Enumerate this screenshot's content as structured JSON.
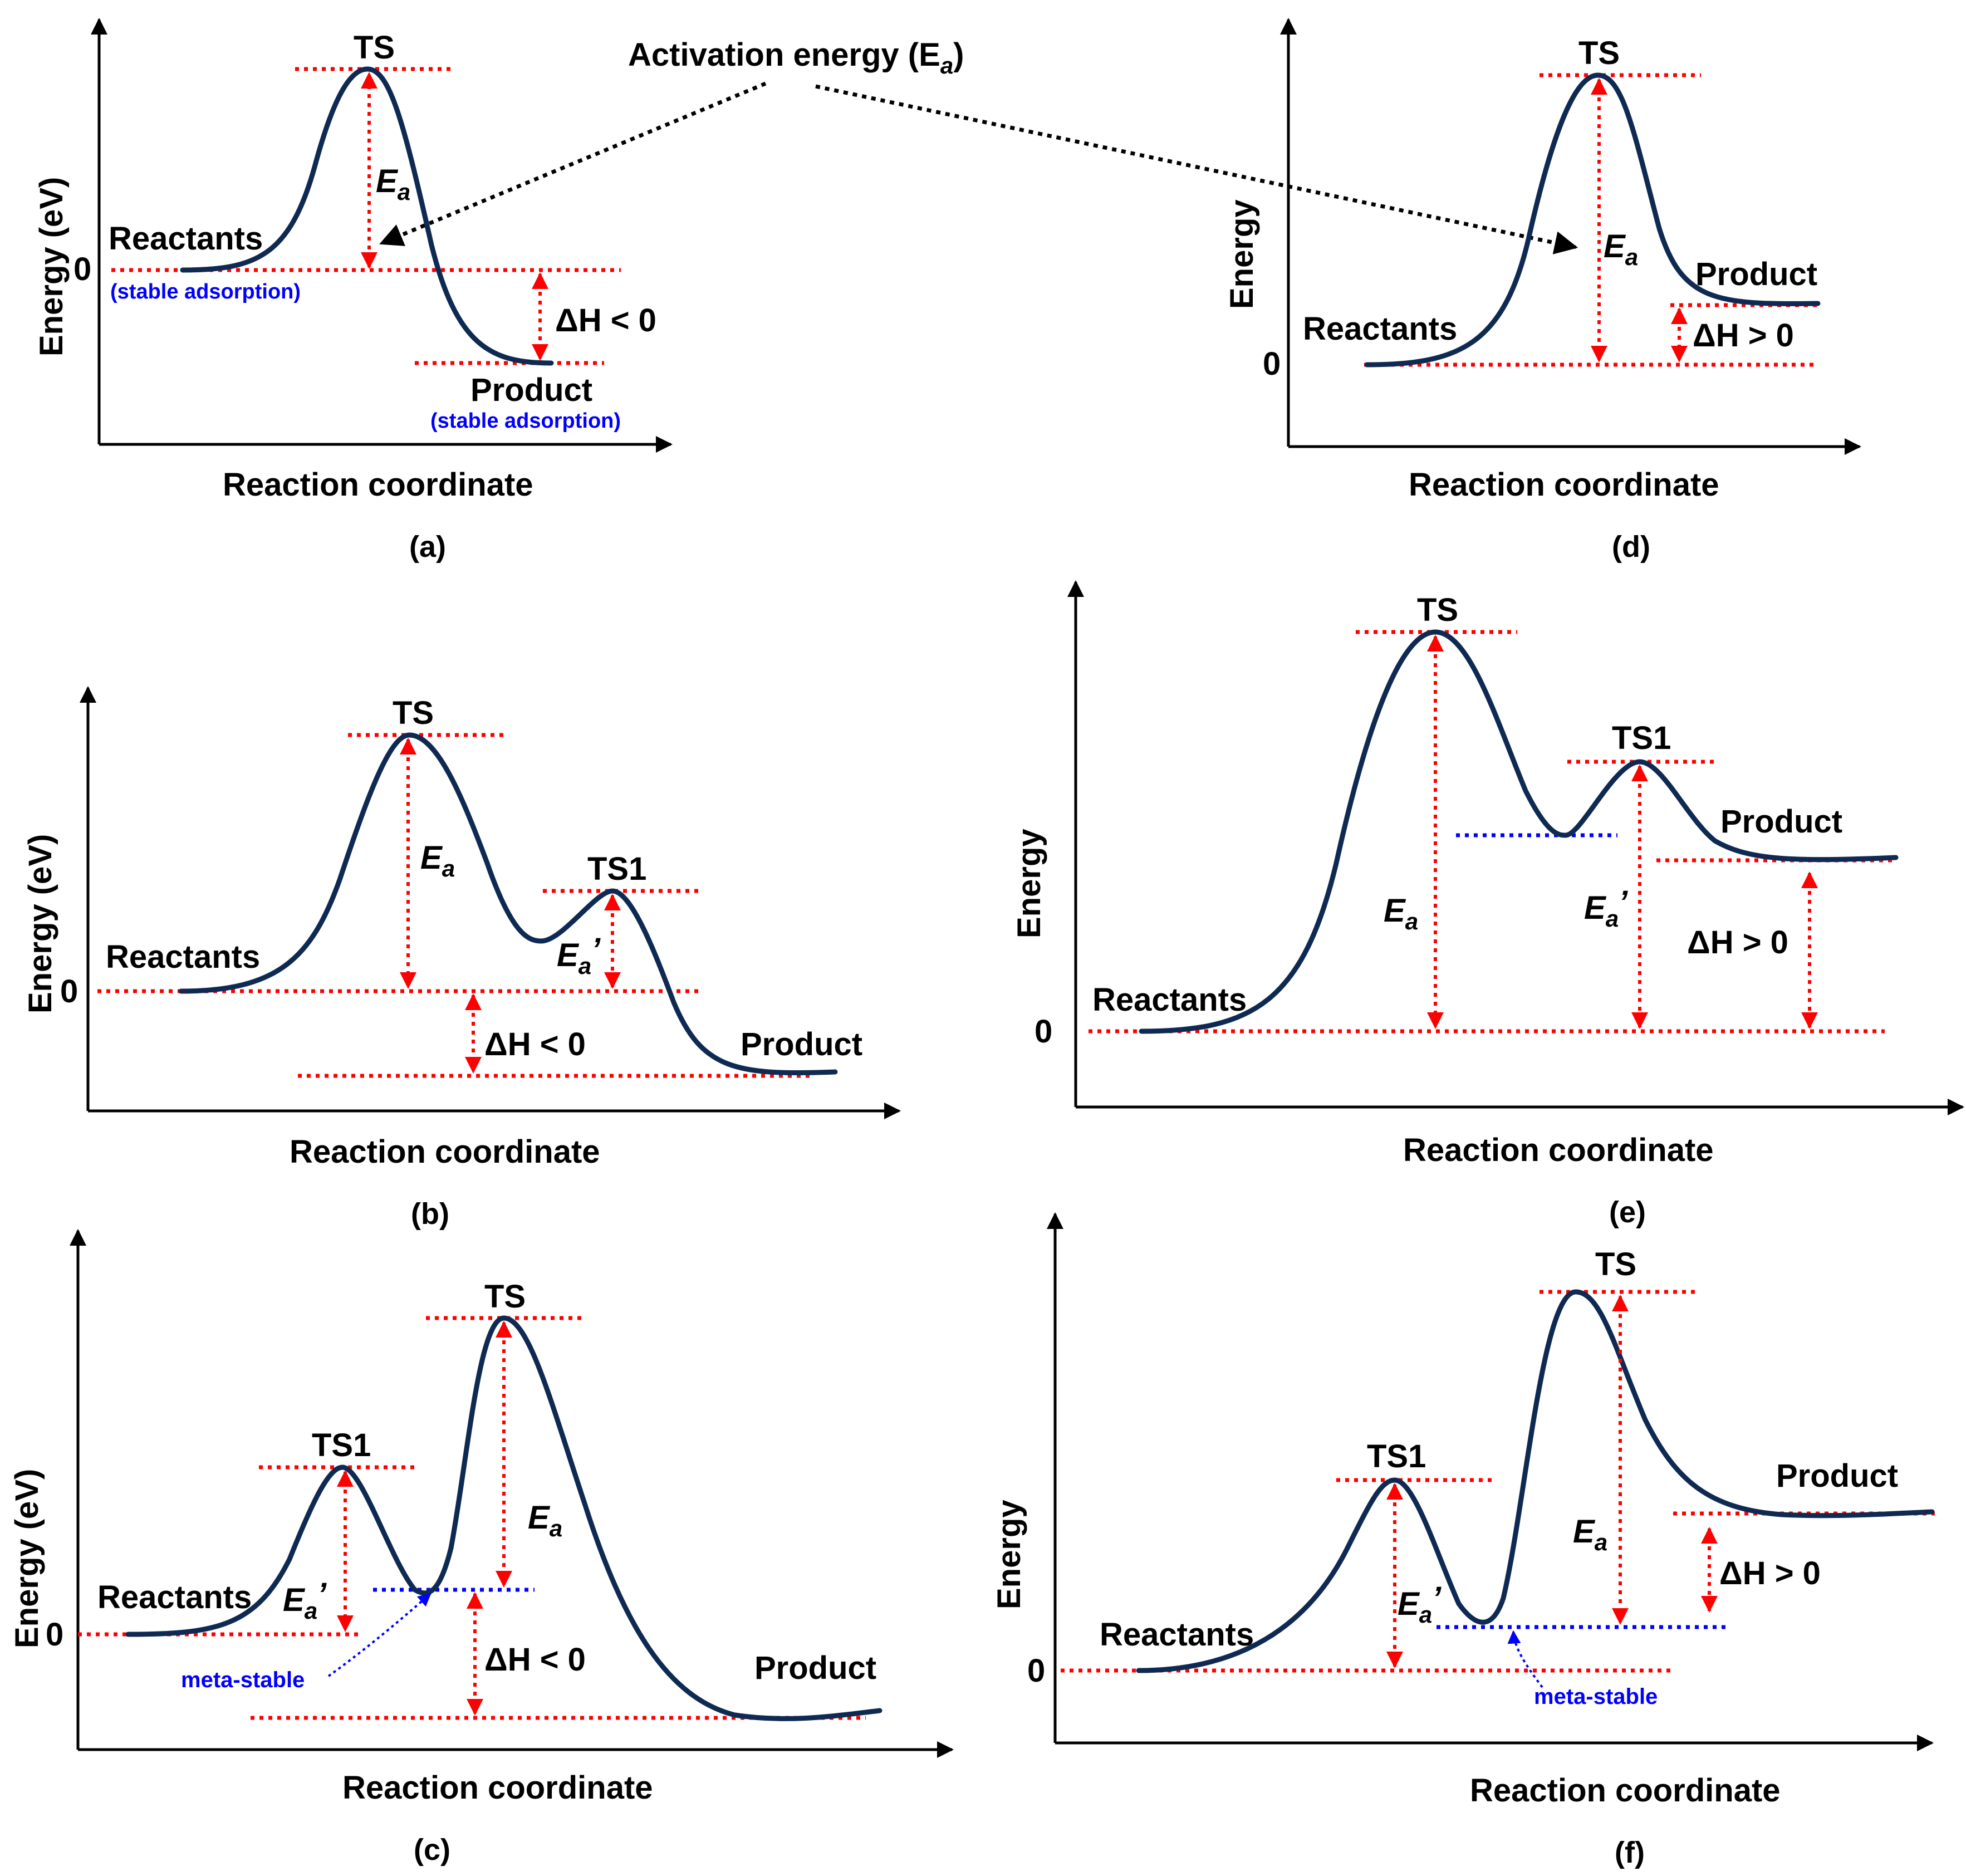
{
  "top_annotation": "Activation energy (E",
  "top_annotation_sub": "a",
  "top_annotation_close": ")",
  "panels": {
    "a": {
      "caption": "(a)",
      "ylabel": "Energy (eV)",
      "xlabel": "Reaction coordinate",
      "zero": "0",
      "ts": "TS",
      "reactants": "Reactants",
      "reactants_note": "(stable adsorption)",
      "product": "Product",
      "product_note": "(stable adsorption)",
      "dh": "ΔH < 0",
      "ea": "E",
      "ea_sub": "a"
    },
    "b": {
      "caption": "(b)",
      "ylabel": "Energy (eV)",
      "xlabel": "Reaction coordinate",
      "zero": "0",
      "ts": "TS",
      "ts1": "TS1",
      "reactants": "Reactants",
      "product": "Product",
      "dh": "ΔH < 0",
      "ea": "E",
      "ea_sub": "a",
      "ea2": "E",
      "ea2_sub": "a",
      "ea2_prime": "’"
    },
    "c": {
      "caption": "(c)",
      "ylabel": "Energy (eV)",
      "xlabel": "Reaction coordinate",
      "zero": "0",
      "ts": "TS",
      "ts1": "TS1",
      "reactants": "Reactants",
      "product": "Product",
      "dh": "ΔH < 0",
      "ea": "E",
      "ea_sub": "a",
      "ea2": "E",
      "ea2_sub": "a",
      "ea2_prime": "’",
      "meta": "meta-stable"
    },
    "d": {
      "caption": "(d)",
      "ylabel": "Energy",
      "xlabel": "Reaction coordinate",
      "zero": "0",
      "ts": "TS",
      "reactants": "Reactants",
      "product": "Product",
      "dh": "ΔH > 0",
      "ea": "E",
      "ea_sub": "a"
    },
    "e": {
      "caption": "(e)",
      "ylabel": "Energy",
      "xlabel": "Reaction coordinate",
      "zero": "0",
      "ts": "TS",
      "ts1": "TS1",
      "reactants": "Reactants",
      "product": "Product",
      "dh": "ΔH > 0",
      "ea": "E",
      "ea_sub": "a",
      "ea2": "E",
      "ea2_sub": "a",
      "ea2_prime": "’"
    },
    "f": {
      "caption": "(f)",
      "ylabel": "Energy",
      "xlabel": "Reaction coordinate",
      "zero": "0",
      "ts": "TS",
      "ts1": "TS1",
      "reactants": "Reactants",
      "product": "Product",
      "dh": "ΔH > 0",
      "ea": "E",
      "ea_sub": "a",
      "ea2": "E",
      "ea2_sub": "a",
      "ea2_prime": "’",
      "meta": "meta-stable"
    }
  },
  "colors": {
    "curve": "#0f2a52",
    "guide": "#ff0000",
    "meta": "#0000ff",
    "axis": "#000000"
  }
}
